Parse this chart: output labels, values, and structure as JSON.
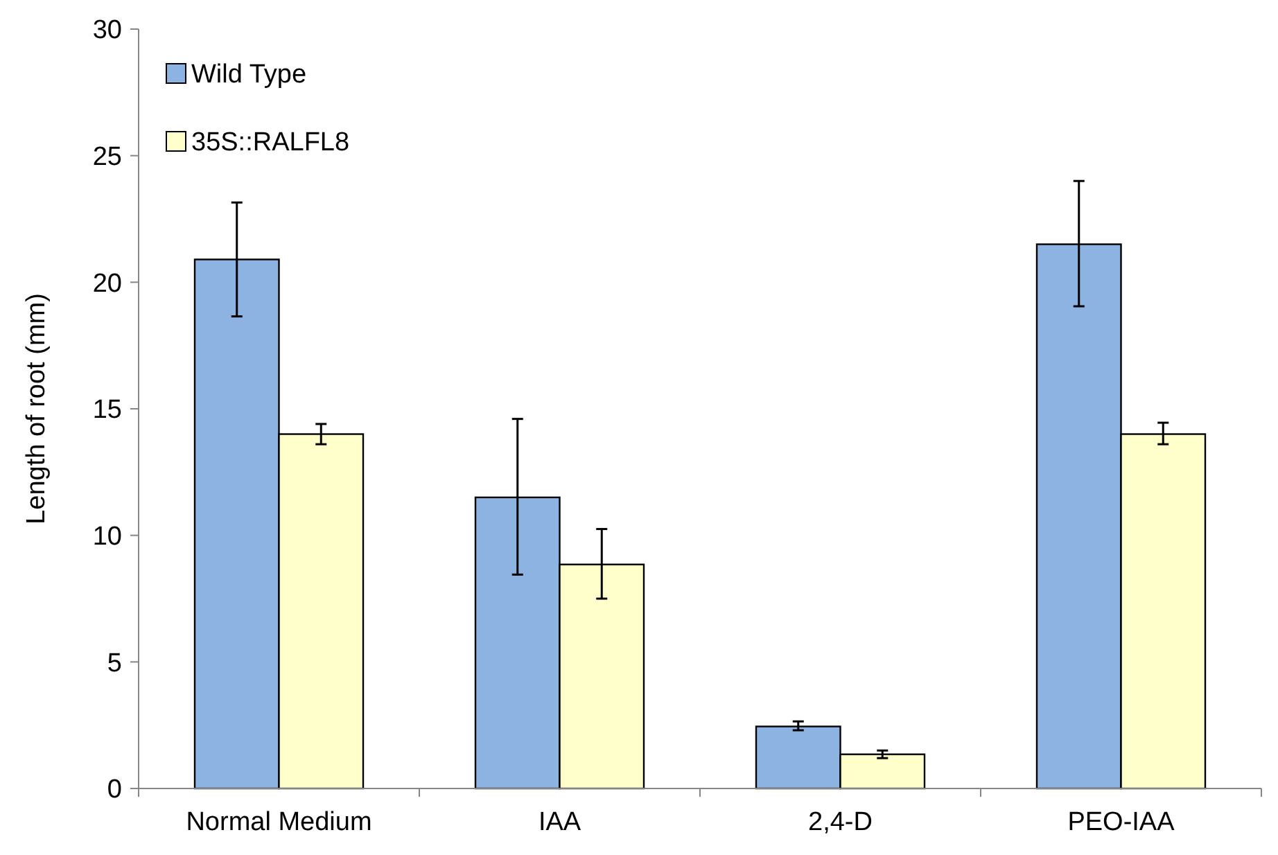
{
  "chart_data": {
    "type": "bar",
    "ylabel": "Length of root (mm)",
    "categories": [
      "Normal Medium",
      "IAA",
      "2,4-D",
      "PEO-IAA"
    ],
    "series": [
      {
        "name": "Wild Type",
        "color": "#8db3e2",
        "values": [
          20.9,
          11.5,
          2.45,
          21.5
        ],
        "errors": [
          [
            18.65,
            23.15
          ],
          [
            8.45,
            14.6
          ],
          [
            2.3,
            2.65
          ],
          [
            19.05,
            24.0
          ]
        ]
      },
      {
        "name": "35S::RALFL8",
        "color": "#ffffcc",
        "values": [
          14.0,
          8.85,
          1.35,
          14.0
        ],
        "errors": [
          [
            13.6,
            14.4
          ],
          [
            7.5,
            10.25
          ],
          [
            1.2,
            1.5
          ],
          [
            13.6,
            14.45
          ]
        ]
      }
    ],
    "ylim": [
      0,
      30
    ],
    "yticks": [
      0,
      5,
      10,
      15,
      20,
      25,
      30
    ],
    "grid": false,
    "legend": "top left"
  }
}
